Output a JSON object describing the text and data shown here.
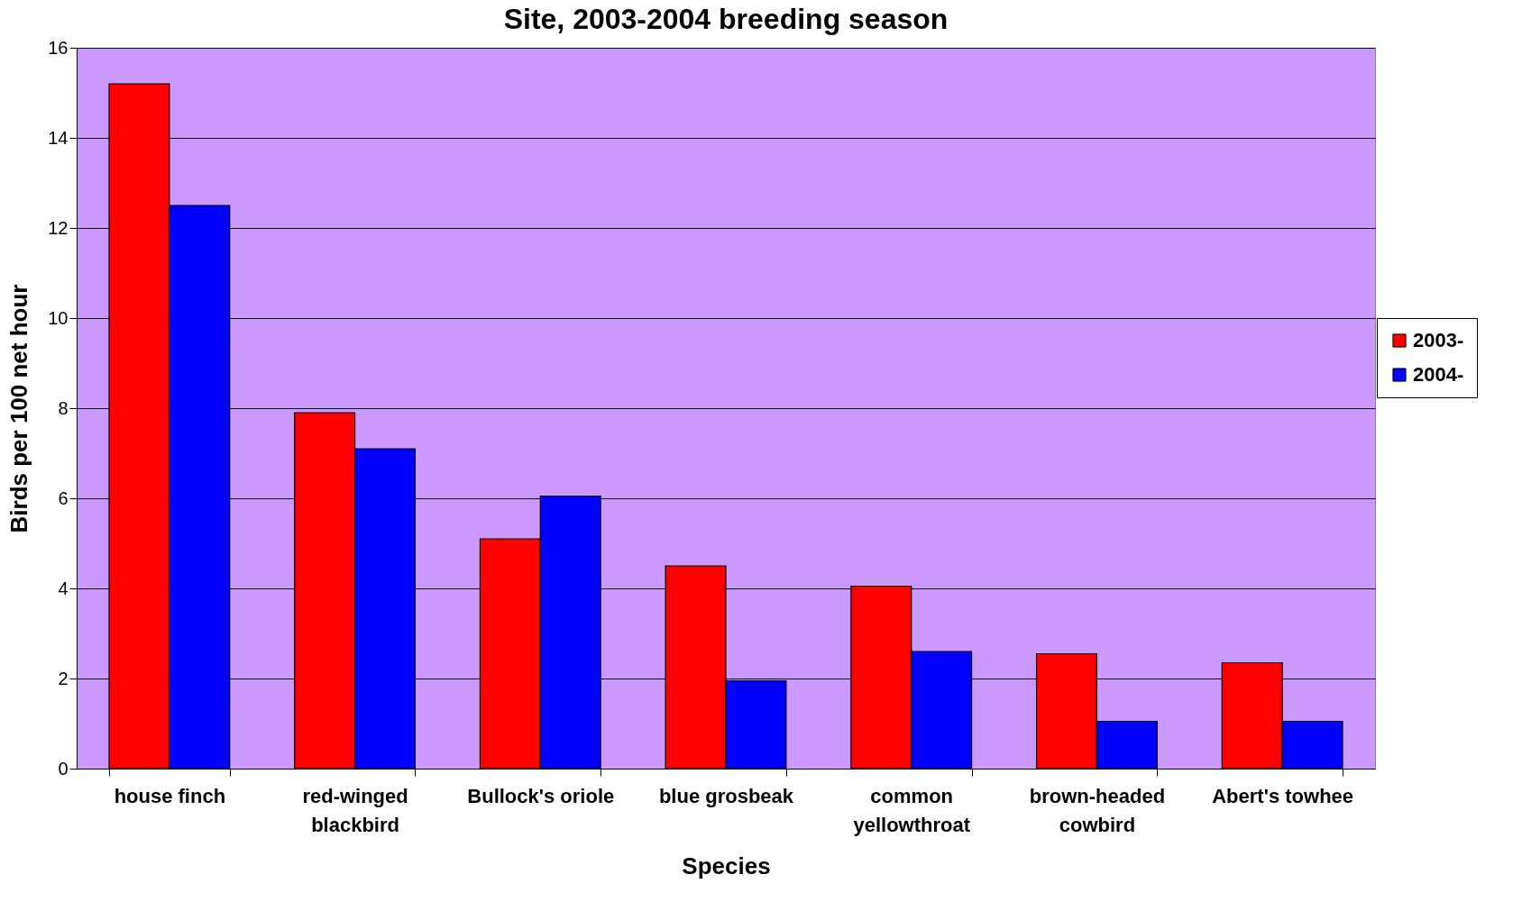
{
  "chart_data": {
    "type": "bar",
    "title": "Site, 2003-2004 breeding season",
    "xlabel": "Species",
    "ylabel": "Birds per 100 net hour",
    "categories": [
      "house finch",
      "red-winged blackbird",
      "Bullock's oriole",
      "blue grosbeak",
      "common yellowthroat",
      "brown-headed cowbird",
      "Abert's towhee"
    ],
    "series": [
      {
        "name": "2003-",
        "color": "#ff0000",
        "values": [
          15.2,
          7.9,
          5.1,
          4.5,
          4.05,
          2.55,
          2.35
        ]
      },
      {
        "name": "2004-",
        "color": "#0000ff",
        "values": [
          12.5,
          7.1,
          6.05,
          1.95,
          2.6,
          1.05,
          1.05
        ]
      }
    ],
    "ylim": [
      0,
      16
    ],
    "yticks": [
      0,
      2,
      4,
      6,
      8,
      10,
      12,
      14,
      16
    ],
    "grid": "y",
    "legend": "right"
  }
}
